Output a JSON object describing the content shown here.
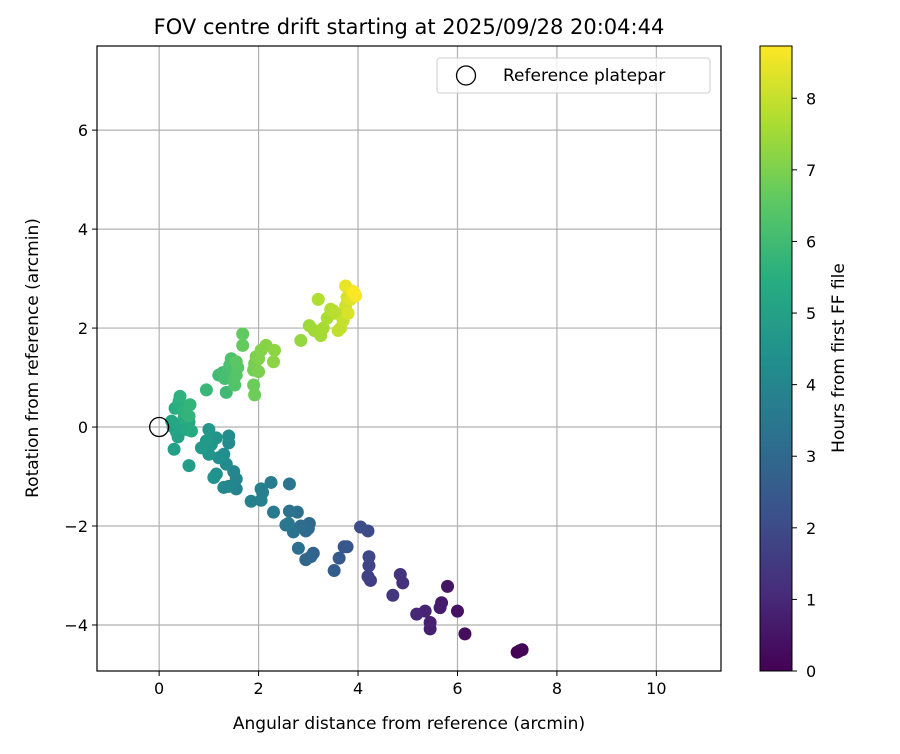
{
  "chart_data": {
    "type": "scatter",
    "title": "FOV centre drift starting at 2025/09/28 20:04:44",
    "xlabel": "Angular distance from reference (arcmin)",
    "ylabel": "Rotation from reference (arcmin)",
    "xlim": [
      -1.25,
      11.3
    ],
    "ylim": [
      -4.93,
      7.7
    ],
    "xticks": [
      0,
      2,
      4,
      6,
      8,
      10
    ],
    "yticks": [
      -4,
      -2,
      0,
      2,
      4,
      6
    ],
    "grid": true,
    "legend": {
      "position": "top-right",
      "entries": [
        {
          "label": "Reference platepar",
          "marker": "open-circle"
        }
      ]
    },
    "reference_point": {
      "x": 0,
      "y": 0
    },
    "colorbar": {
      "label": "Hours from first FF file",
      "colormap": "viridis",
      "range": [
        0,
        8.73
      ],
      "ticks": [
        0,
        1,
        2,
        3,
        4,
        5,
        6,
        7,
        8
      ]
    },
    "points": [
      {
        "x": 7.2,
        "y": -4.55,
        "c": 0.0
      },
      {
        "x": 7.3,
        "y": -4.5,
        "c": 0.05
      },
      {
        "x": 7.25,
        "y": -4.52,
        "c": 0.1
      },
      {
        "x": 6.15,
        "y": -4.18,
        "c": 0.3
      },
      {
        "x": 6.0,
        "y": -3.72,
        "c": 0.4
      },
      {
        "x": 5.8,
        "y": -3.22,
        "c": 0.5
      },
      {
        "x": 5.68,
        "y": -3.55,
        "c": 0.6
      },
      {
        "x": 5.65,
        "y": -3.65,
        "c": 0.7
      },
      {
        "x": 5.45,
        "y": -4.08,
        "c": 0.75
      },
      {
        "x": 5.45,
        "y": -3.95,
        "c": 0.8
      },
      {
        "x": 5.35,
        "y": -3.72,
        "c": 0.9
      },
      {
        "x": 5.18,
        "y": -3.78,
        "c": 1.0
      },
      {
        "x": 4.9,
        "y": -3.15,
        "c": 1.2
      },
      {
        "x": 4.85,
        "y": -2.98,
        "c": 1.3
      },
      {
        "x": 4.7,
        "y": -3.4,
        "c": 1.4
      },
      {
        "x": 4.25,
        "y": -3.1,
        "c": 1.6
      },
      {
        "x": 4.2,
        "y": -3.02,
        "c": 1.7
      },
      {
        "x": 4.22,
        "y": -2.8,
        "c": 1.8
      },
      {
        "x": 4.22,
        "y": -2.62,
        "c": 1.9
      },
      {
        "x": 4.2,
        "y": -2.1,
        "c": 2.0
      },
      {
        "x": 4.05,
        "y": -2.02,
        "c": 2.1
      },
      {
        "x": 3.78,
        "y": -2.42,
        "c": 2.3
      },
      {
        "x": 3.72,
        "y": -2.42,
        "c": 2.4
      },
      {
        "x": 3.62,
        "y": -2.65,
        "c": 2.5
      },
      {
        "x": 3.52,
        "y": -2.9,
        "c": 2.6
      },
      {
        "x": 3.1,
        "y": -2.55,
        "c": 2.8
      },
      {
        "x": 3.05,
        "y": -2.62,
        "c": 2.85
      },
      {
        "x": 2.95,
        "y": -2.68,
        "c": 2.9
      },
      {
        "x": 3.0,
        "y": -2.05,
        "c": 3.0
      },
      {
        "x": 3.02,
        "y": -1.95,
        "c": 3.05
      },
      {
        "x": 2.95,
        "y": -2.1,
        "c": 3.1
      },
      {
        "x": 2.85,
        "y": -2.0,
        "c": 3.15
      },
      {
        "x": 2.8,
        "y": -2.45,
        "c": 3.2
      },
      {
        "x": 2.78,
        "y": -1.72,
        "c": 3.25
      },
      {
        "x": 2.7,
        "y": -2.12,
        "c": 3.3
      },
      {
        "x": 2.62,
        "y": -1.7,
        "c": 3.35
      },
      {
        "x": 2.62,
        "y": -1.15,
        "c": 3.4
      },
      {
        "x": 2.55,
        "y": -1.98,
        "c": 3.45
      },
      {
        "x": 2.6,
        "y": -1.95,
        "c": 3.5
      },
      {
        "x": 2.3,
        "y": -1.72,
        "c": 3.6
      },
      {
        "x": 2.25,
        "y": -1.12,
        "c": 3.65
      },
      {
        "x": 2.08,
        "y": -1.32,
        "c": 3.7
      },
      {
        "x": 2.05,
        "y": -1.25,
        "c": 3.75
      },
      {
        "x": 2.05,
        "y": -1.48,
        "c": 3.8
      },
      {
        "x": 1.85,
        "y": -1.5,
        "c": 3.85
      },
      {
        "x": 1.55,
        "y": -1.25,
        "c": 3.9
      },
      {
        "x": 1.55,
        "y": -1.05,
        "c": 3.95
      },
      {
        "x": 1.5,
        "y": -0.9,
        "c": 4.0
      },
      {
        "x": 1.4,
        "y": -1.2,
        "c": 4.05
      },
      {
        "x": 1.3,
        "y": -1.22,
        "c": 4.1
      },
      {
        "x": 1.35,
        "y": -0.75,
        "c": 4.15
      },
      {
        "x": 1.4,
        "y": -0.32,
        "c": 4.2
      },
      {
        "x": 1.4,
        "y": -0.18,
        "c": 4.25
      },
      {
        "x": 1.3,
        "y": -0.55,
        "c": 4.3
      },
      {
        "x": 1.2,
        "y": -0.62,
        "c": 4.35
      },
      {
        "x": 1.15,
        "y": -0.95,
        "c": 4.4
      },
      {
        "x": 1.1,
        "y": -1.02,
        "c": 4.45
      },
      {
        "x": 1.15,
        "y": -0.22,
        "c": 4.5
      },
      {
        "x": 1.05,
        "y": -0.35,
        "c": 4.55
      },
      {
        "x": 1.0,
        "y": -0.55,
        "c": 4.6
      },
      {
        "x": 1.0,
        "y": -0.05,
        "c": 4.65
      },
      {
        "x": 0.95,
        "y": -0.28,
        "c": 4.7
      },
      {
        "x": 0.85,
        "y": -0.42,
        "c": 4.75
      },
      {
        "x": 0.6,
        "y": -0.78,
        "c": 4.85
      },
      {
        "x": 0.3,
        "y": -0.45,
        "c": 4.95
      },
      {
        "x": 0.38,
        "y": -0.2,
        "c": 5.0
      },
      {
        "x": 0.35,
        "y": -0.1,
        "c": 5.05
      },
      {
        "x": 0.28,
        "y": 0.0,
        "c": 5.1
      },
      {
        "x": 0.25,
        "y": 0.12,
        "c": 5.15
      },
      {
        "x": 0.45,
        "y": 0.02,
        "c": 5.2
      },
      {
        "x": 0.55,
        "y": -0.05,
        "c": 5.25
      },
      {
        "x": 0.6,
        "y": 0.1,
        "c": 5.3
      },
      {
        "x": 0.65,
        "y": -0.08,
        "c": 5.35
      },
      {
        "x": 0.5,
        "y": 0.18,
        "c": 5.4
      },
      {
        "x": 0.32,
        "y": 0.38,
        "c": 5.45
      },
      {
        "x": 0.42,
        "y": 0.4,
        "c": 5.5
      },
      {
        "x": 0.4,
        "y": 0.52,
        "c": 5.55
      },
      {
        "x": 0.42,
        "y": 0.62,
        "c": 5.6
      },
      {
        "x": 0.5,
        "y": 0.3,
        "c": 5.65
      },
      {
        "x": 0.6,
        "y": 0.22,
        "c": 5.7
      },
      {
        "x": 0.62,
        "y": 0.45,
        "c": 5.75
      },
      {
        "x": 0.95,
        "y": 0.75,
        "c": 5.85
      },
      {
        "x": 1.35,
        "y": 0.7,
        "c": 5.95
      },
      {
        "x": 1.2,
        "y": 1.05,
        "c": 6.0
      },
      {
        "x": 1.28,
        "y": 1.1,
        "c": 6.05
      },
      {
        "x": 1.32,
        "y": 0.98,
        "c": 6.1
      },
      {
        "x": 1.38,
        "y": 1.12,
        "c": 6.15
      },
      {
        "x": 1.42,
        "y": 1.25,
        "c": 6.2
      },
      {
        "x": 1.45,
        "y": 1.38,
        "c": 6.25
      },
      {
        "x": 1.5,
        "y": 0.95,
        "c": 6.3
      },
      {
        "x": 1.52,
        "y": 0.85,
        "c": 6.35
      },
      {
        "x": 1.55,
        "y": 1.05,
        "c": 6.4
      },
      {
        "x": 1.58,
        "y": 1.2,
        "c": 6.45
      },
      {
        "x": 1.55,
        "y": 1.32,
        "c": 6.5
      },
      {
        "x": 1.68,
        "y": 1.88,
        "c": 6.6
      },
      {
        "x": 1.68,
        "y": 1.65,
        "c": 6.65
      },
      {
        "x": 1.9,
        "y": 0.85,
        "c": 6.75
      },
      {
        "x": 1.92,
        "y": 0.65,
        "c": 6.8
      },
      {
        "x": 1.9,
        "y": 1.15,
        "c": 6.85
      },
      {
        "x": 1.92,
        "y": 1.28,
        "c": 6.9
      },
      {
        "x": 1.95,
        "y": 1.42,
        "c": 6.95
      },
      {
        "x": 2.0,
        "y": 1.12,
        "c": 7.0
      },
      {
        "x": 2.0,
        "y": 1.38,
        "c": 7.05
      },
      {
        "x": 2.05,
        "y": 1.55,
        "c": 7.1
      },
      {
        "x": 2.15,
        "y": 1.65,
        "c": 7.15
      },
      {
        "x": 2.3,
        "y": 1.32,
        "c": 7.2
      },
      {
        "x": 2.32,
        "y": 1.55,
        "c": 7.25
      },
      {
        "x": 2.85,
        "y": 1.75,
        "c": 7.35
      },
      {
        "x": 3.02,
        "y": 2.05,
        "c": 7.45
      },
      {
        "x": 3.12,
        "y": 1.95,
        "c": 7.5
      },
      {
        "x": 3.25,
        "y": 1.85,
        "c": 7.55
      },
      {
        "x": 3.3,
        "y": 2.0,
        "c": 7.6
      },
      {
        "x": 3.38,
        "y": 2.2,
        "c": 7.65
      },
      {
        "x": 3.2,
        "y": 2.58,
        "c": 7.7
      },
      {
        "x": 3.45,
        "y": 2.38,
        "c": 7.75
      },
      {
        "x": 3.5,
        "y": 2.35,
        "c": 7.8
      },
      {
        "x": 3.55,
        "y": 2.3,
        "c": 7.85
      },
      {
        "x": 3.6,
        "y": 1.95,
        "c": 7.9
      },
      {
        "x": 3.65,
        "y": 2.0,
        "c": 7.95
      },
      {
        "x": 3.7,
        "y": 2.15,
        "c": 8.0
      },
      {
        "x": 3.75,
        "y": 2.45,
        "c": 8.1
      },
      {
        "x": 3.78,
        "y": 2.62,
        "c": 8.2
      },
      {
        "x": 3.8,
        "y": 2.3,
        "c": 8.25
      },
      {
        "x": 3.85,
        "y": 2.58,
        "c": 8.35
      },
      {
        "x": 3.75,
        "y": 2.85,
        "c": 8.45
      },
      {
        "x": 3.88,
        "y": 2.75,
        "c": 8.55
      },
      {
        "x": 3.95,
        "y": 2.65,
        "c": 8.65
      },
      {
        "x": 3.92,
        "y": 2.72,
        "c": 8.7
      }
    ]
  }
}
